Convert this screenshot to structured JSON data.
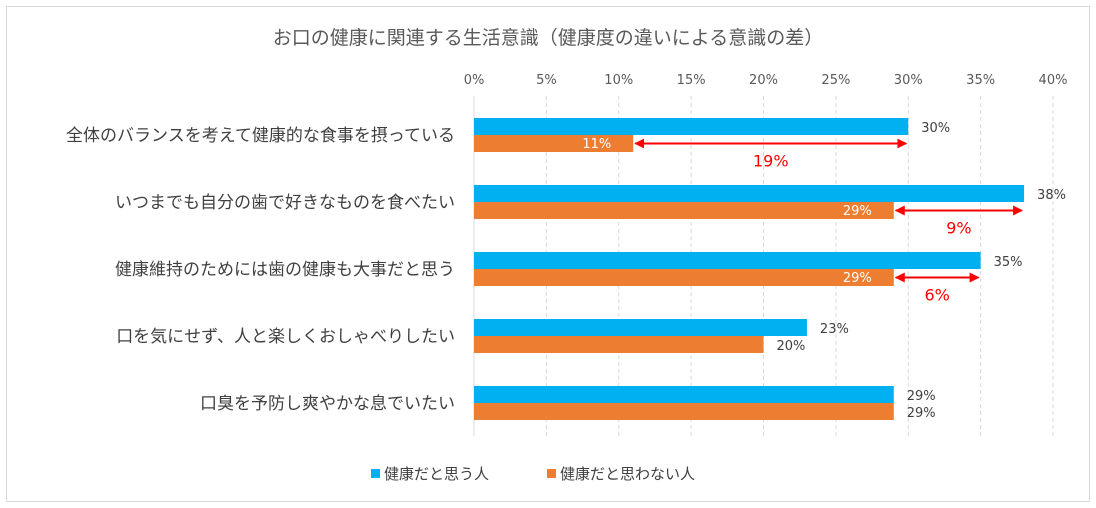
{
  "chart_data": {
    "type": "bar",
    "orientation": "horizontal",
    "title": "お口の健康に関連する生活意識（健康度の違いによる意識の差）",
    "categories": [
      "全体のバランスを考えて健康的な食事を摂っている",
      "いつまでも自分の歯で好きなものを食べたい",
      "健康維持のためには歯の健康も大事だと思う",
      "口を気にせず、人と楽しくおしゃべりしたい",
      "口臭を予防し爽やかな息でいたい"
    ],
    "series": [
      {
        "name": "健康だと思う人",
        "color": "#00B0F0",
        "values": [
          30,
          38,
          35,
          23,
          29
        ]
      },
      {
        "name": "健康だと思わない人",
        "color": "#ED7D31",
        "values": [
          11,
          29,
          29,
          20,
          29
        ]
      }
    ],
    "value_labels": [
      [
        "30%",
        "38%",
        "35%",
        "23%",
        "29%"
      ],
      [
        "11%",
        "29%",
        "29%",
        "20%",
        "29%"
      ]
    ],
    "differences": [
      {
        "category_index": 0,
        "label": "19%"
      },
      {
        "category_index": 1,
        "label": "9%"
      },
      {
        "category_index": 2,
        "label": "6%"
      }
    ],
    "difference_color": "#FF0000",
    "xlim": [
      0,
      40
    ],
    "xticks": [
      "0%",
      "5%",
      "10%",
      "15%",
      "20%",
      "25%",
      "30%",
      "35%",
      "40%"
    ],
    "x_axis_position": "top",
    "grid": true,
    "legend_position": "bottom"
  }
}
